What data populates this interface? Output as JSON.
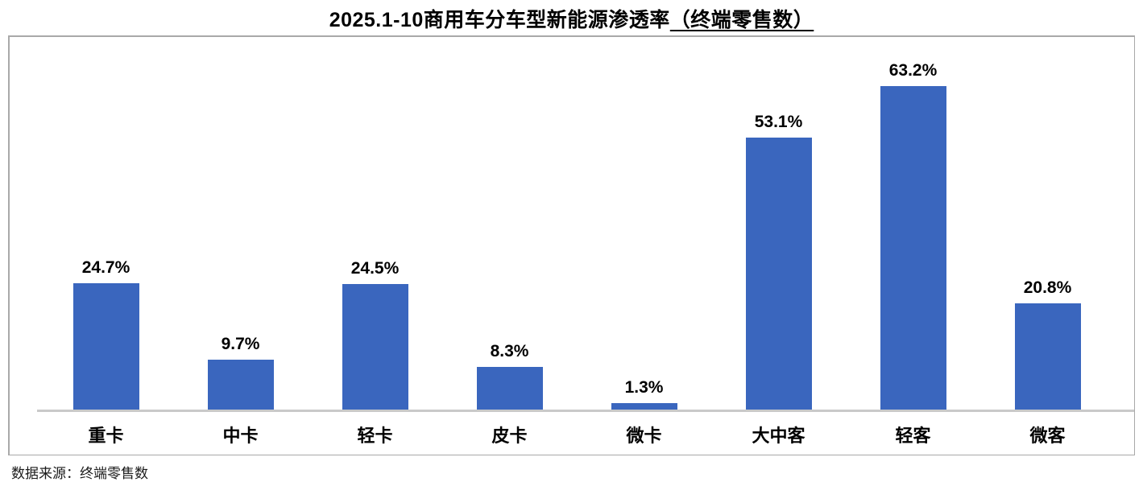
{
  "title": {
    "main": "2025.1-10商用车分车型新能源渗透率",
    "paren": "（终端零售数）"
  },
  "source_note": "数据来源：终端零售数",
  "colors": {
    "bar": "#3a66be",
    "axis_line": "#c9c9c9",
    "panel_border": "#a9a9a9",
    "text": "#000000"
  },
  "chart_data": {
    "type": "bar",
    "title": "2025.1-10商用车分车型新能源渗透率（终端零售数）",
    "categories": [
      "重卡",
      "中卡",
      "轻卡",
      "皮卡",
      "微卡",
      "大中客",
      "轻客",
      "微客"
    ],
    "values": [
      24.7,
      9.7,
      24.5,
      8.3,
      1.3,
      53.1,
      63.2,
      20.8
    ],
    "value_labels": [
      "24.7%",
      "9.7%",
      "24.5%",
      "8.3%",
      "1.3%",
      "53.1%",
      "63.2%",
      "20.8%"
    ],
    "xlabel": "",
    "ylabel": "",
    "ylim": [
      0,
      70
    ],
    "grid": false,
    "legend": null,
    "bar_color": "#3a66be",
    "data_labels_shown": true,
    "source": "数据来源：终端零售数"
  }
}
